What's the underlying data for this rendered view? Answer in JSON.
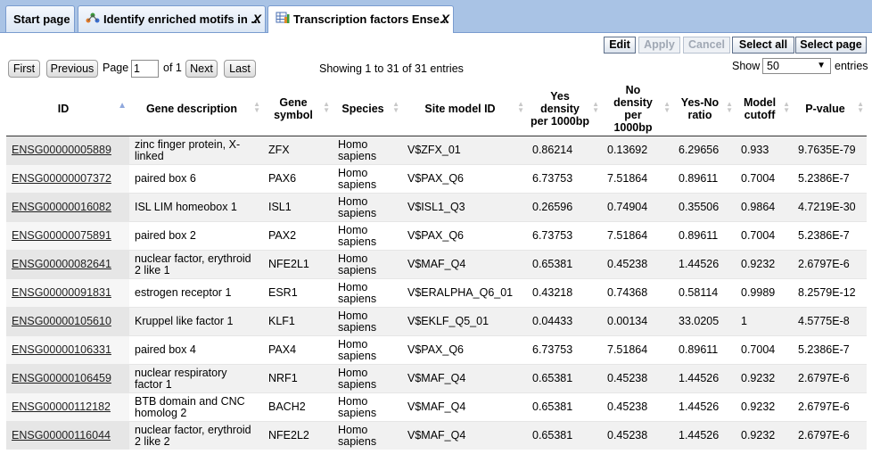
{
  "tabs": [
    {
      "label": "Start page",
      "closable": false,
      "active": false
    },
    {
      "label": "Identify enriched motifs in ...",
      "closable": true,
      "active": false
    },
    {
      "label": "Transcription factors Ense...",
      "closable": true,
      "active": true
    }
  ],
  "toolbar": {
    "edit": "Edit",
    "apply": "Apply",
    "cancel": "Cancel",
    "select_all": "Select all",
    "select_page": "Select page"
  },
  "pager": {
    "first": "First",
    "previous": "Previous",
    "page_label": "Page",
    "page_value": "1",
    "of_label": "of 1",
    "next": "Next",
    "last": "Last",
    "showing": "Showing 1 to 31 of 31 entries",
    "show_label": "Show",
    "page_size": "50",
    "entries_label": "entries"
  },
  "columns": [
    "ID",
    "Gene description",
    "Gene symbol",
    "Species",
    "Site model ID",
    "Yes density per 1000bp",
    "No density per 1000bp",
    "Yes-No ratio",
    "Model cutoff",
    "P-value"
  ],
  "rows": [
    [
      "ENSG00000005889",
      "zinc finger protein, X-linked",
      "ZFX",
      "Homo sapiens",
      "V$ZFX_01",
      "0.86214",
      "0.13692",
      "6.29656",
      "0.933",
      "9.7635E-79"
    ],
    [
      "ENSG00000007372",
      "paired box 6",
      "PAX6",
      "Homo sapiens",
      "V$PAX_Q6",
      "6.73753",
      "7.51864",
      "0.89611",
      "0.7004",
      "5.2386E-7"
    ],
    [
      "ENSG00000016082",
      "ISL LIM homeobox 1",
      "ISL1",
      "Homo sapiens",
      "V$ISL1_Q3",
      "0.26596",
      "0.74904",
      "0.35506",
      "0.9864",
      "4.7219E-30"
    ],
    [
      "ENSG00000075891",
      "paired box 2",
      "PAX2",
      "Homo sapiens",
      "V$PAX_Q6",
      "6.73753",
      "7.51864",
      "0.89611",
      "0.7004",
      "5.2386E-7"
    ],
    [
      "ENSG00000082641",
      "nuclear factor, erythroid 2 like 1",
      "NFE2L1",
      "Homo sapiens",
      "V$MAF_Q4",
      "0.65381",
      "0.45238",
      "1.44526",
      "0.9232",
      "2.6797E-6"
    ],
    [
      "ENSG00000091831",
      "estrogen receptor 1",
      "ESR1",
      "Homo sapiens",
      "V$ERALPHA_Q6_01",
      "0.43218",
      "0.74368",
      "0.58114",
      "0.9989",
      "8.2579E-12"
    ],
    [
      "ENSG00000105610",
      "Kruppel like factor 1",
      "KLF1",
      "Homo sapiens",
      "V$EKLF_Q5_01",
      "0.04433",
      "0.00134",
      "33.0205",
      "1",
      "4.5775E-8"
    ],
    [
      "ENSG00000106331",
      "paired box 4",
      "PAX4",
      "Homo sapiens",
      "V$PAX_Q6",
      "6.73753",
      "7.51864",
      "0.89611",
      "0.7004",
      "5.2386E-7"
    ],
    [
      "ENSG00000106459",
      "nuclear respiratory factor 1",
      "NRF1",
      "Homo sapiens",
      "V$MAF_Q4",
      "0.65381",
      "0.45238",
      "1.44526",
      "0.9232",
      "2.6797E-6"
    ],
    [
      "ENSG00000112182",
      "BTB domain and CNC homolog 2",
      "BACH2",
      "Homo sapiens",
      "V$MAF_Q4",
      "0.65381",
      "0.45238",
      "1.44526",
      "0.9232",
      "2.6797E-6"
    ],
    [
      "ENSG00000116044",
      "nuclear factor, erythroid 2 like 2",
      "NFE2L2",
      "Homo sapiens",
      "V$MAF_Q4",
      "0.65381",
      "0.45238",
      "1.44526",
      "0.9232",
      "2.6797E-6"
    ]
  ],
  "colors": {
    "tabbar": "#a9c3e5",
    "odd_row": "#f1f1f1",
    "sort_asc": "#8fa8dd"
  },
  "icons": {
    "tab2": "workflow-icon",
    "tab3": "table-chart-icon",
    "close": "close-icon",
    "sort": "sort-arrows-icon",
    "dropdown": "chevron-down-icon"
  }
}
